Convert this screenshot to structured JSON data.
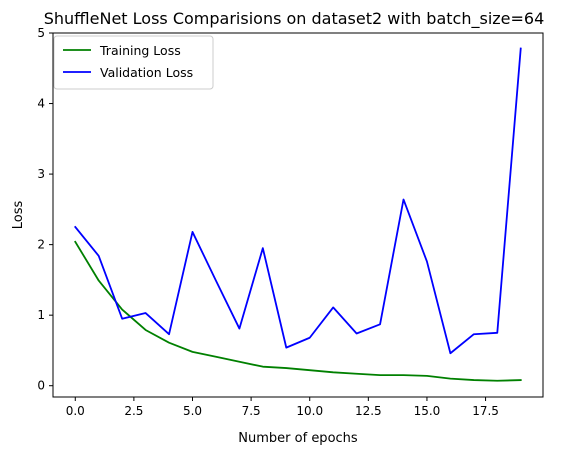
{
  "chart_data": {
    "type": "line",
    "title": "ShuffleNet Loss Comparisions on dataset2 with batch_size=64",
    "xlabel": "Number of epochs",
    "ylabel": "Loss",
    "xlim": [
      -0.95,
      19.95
    ],
    "ylim": [
      -0.16,
      5.0
    ],
    "xticks": [
      0.0,
      2.5,
      5.0,
      7.5,
      10.0,
      12.5,
      15.0,
      17.5
    ],
    "xtick_labels": [
      "0.0",
      "2.5",
      "5.0",
      "7.5",
      "10.0",
      "12.5",
      "15.0",
      "17.5"
    ],
    "yticks": [
      0,
      1,
      2,
      3,
      4,
      5
    ],
    "ytick_labels": [
      "0",
      "1",
      "2",
      "3",
      "4",
      "5"
    ],
    "grid": false,
    "legend_position": "top-left",
    "x": [
      0,
      1,
      2,
      3,
      4,
      5,
      6,
      7,
      8,
      9,
      10,
      11,
      12,
      13,
      14,
      15,
      16,
      17,
      18,
      19
    ],
    "series": [
      {
        "name": "Training Loss",
        "color": "#008000",
        "values": [
          2.04,
          1.49,
          1.08,
          0.79,
          0.61,
          0.48,
          0.41,
          0.34,
          0.27,
          0.25,
          0.22,
          0.19,
          0.17,
          0.15,
          0.15,
          0.14,
          0.1,
          0.08,
          0.07,
          0.08
        ]
      },
      {
        "name": "Validation Loss",
        "color": "#0000ff",
        "values": [
          2.25,
          1.84,
          0.95,
          1.03,
          0.73,
          2.18,
          1.49,
          0.81,
          1.95,
          0.54,
          0.68,
          1.11,
          0.74,
          0.87,
          2.64,
          1.76,
          0.46,
          0.73,
          0.75,
          4.78
        ]
      }
    ]
  }
}
